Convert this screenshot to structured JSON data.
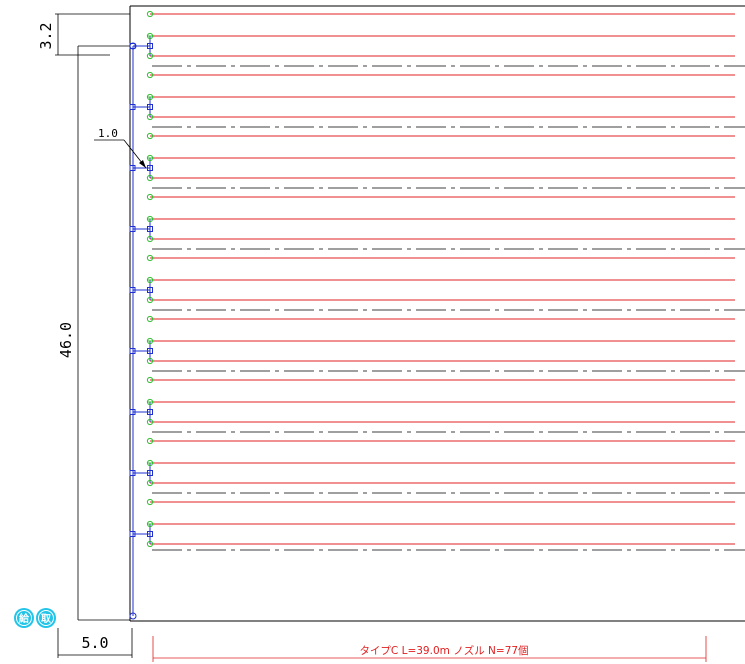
{
  "dimensions": {
    "top_offset": "3.2",
    "height": "46.0",
    "width": "5.0",
    "pitch_label": "1.0"
  },
  "caption": "タイプC L=39.0m ノズル N=77個",
  "badges": [
    {
      "label": "給",
      "color": "#22c4e8"
    },
    {
      "label": "取",
      "color": "#22c4e8"
    }
  ],
  "colors": {
    "frame": "#000000",
    "pipe_line": "#e02020",
    "center_line": "#000000",
    "header": "#1f2fd0",
    "nozzle": "#30c030",
    "caption": "#e02020"
  },
  "layout": {
    "bay_count": 9,
    "lines_per_bay": 3
  }
}
